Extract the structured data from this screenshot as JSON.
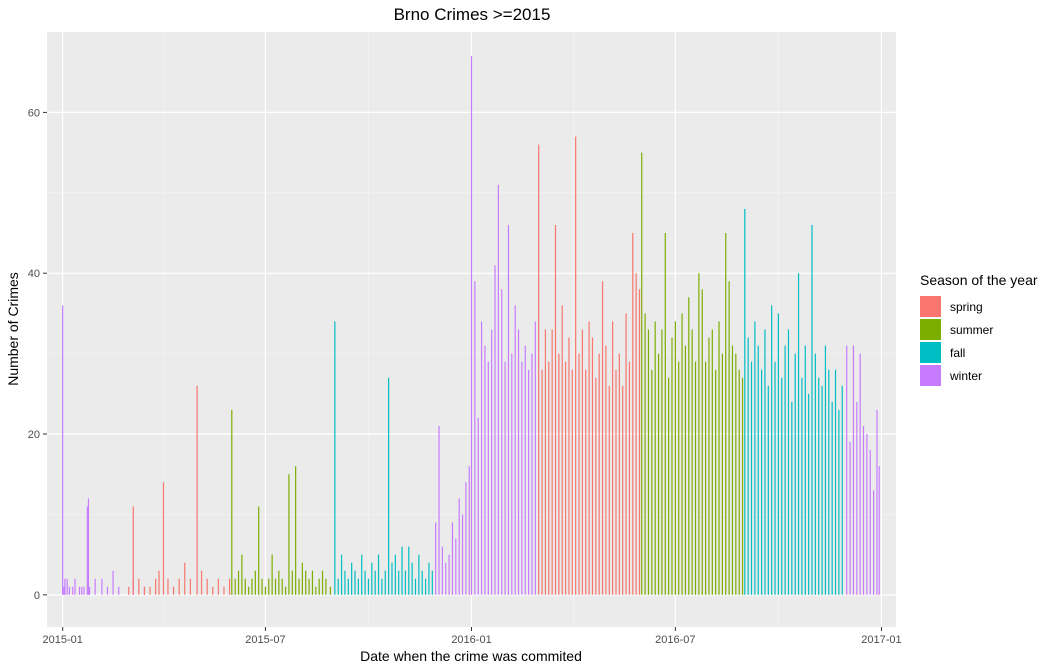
{
  "chart_data": {
    "type": "bar",
    "title": "Brno Crimes >=2015",
    "xlabel": "Date when the crime was commited",
    "ylabel": "Number of Crimes",
    "x_range": [
      "2014-12-18",
      "2017-01-14"
    ],
    "ylim": [
      -4,
      70
    ],
    "y_ticks": [
      0,
      20,
      40,
      60
    ],
    "x_ticks": [
      "2015-01",
      "2015-07",
      "2016-01",
      "2016-07",
      "2017-01"
    ],
    "x_tick_dates": [
      "2015-01-01",
      "2015-07-01",
      "2016-01-01",
      "2016-07-01",
      "2017-01-01"
    ],
    "grid": true,
    "legend": {
      "title": "Season of the year",
      "position": "right",
      "entries": [
        {
          "name": "spring",
          "color": "#F8766D"
        },
        {
          "name": "summer",
          "color": "#7CAE00"
        },
        {
          "name": "fall",
          "color": "#00BFC4"
        },
        {
          "name": "winter",
          "color": "#C77CFF"
        }
      ]
    },
    "series": [
      {
        "name": "winter",
        "color": "#C77CFF",
        "points": [
          [
            "2015-01-01",
            36
          ],
          [
            "2015-01-02",
            1
          ],
          [
            "2015-01-03",
            2
          ],
          [
            "2015-01-05",
            2
          ],
          [
            "2015-01-07",
            1
          ],
          [
            "2015-01-10",
            1
          ],
          [
            "2015-01-12",
            2
          ],
          [
            "2015-01-16",
            1
          ],
          [
            "2015-01-18",
            1
          ],
          [
            "2015-01-20",
            1
          ],
          [
            "2015-01-23",
            11
          ],
          [
            "2015-01-24",
            12
          ],
          [
            "2015-01-25",
            1
          ],
          [
            "2015-01-30",
            2
          ],
          [
            "2015-02-05",
            2
          ],
          [
            "2015-02-10",
            1
          ],
          [
            "2015-02-15",
            3
          ],
          [
            "2015-02-20",
            1
          ],
          [
            "2015-03-05",
            2
          ],
          [
            "2015-03-15",
            1
          ],
          [
            "2015-11-30",
            9
          ],
          [
            "2015-12-03",
            21
          ],
          [
            "2015-12-06",
            6
          ],
          [
            "2015-12-09",
            4
          ],
          [
            "2015-12-12",
            5
          ],
          [
            "2015-12-15",
            9
          ],
          [
            "2015-12-18",
            7
          ],
          [
            "2015-12-21",
            12
          ],
          [
            "2015-12-24",
            10
          ],
          [
            "2015-12-27",
            14
          ],
          [
            "2015-12-30",
            16
          ],
          [
            "2016-01-01",
            67
          ],
          [
            "2016-01-04",
            39
          ],
          [
            "2016-01-07",
            22
          ],
          [
            "2016-01-10",
            34
          ],
          [
            "2016-01-13",
            31
          ],
          [
            "2016-01-16",
            29
          ],
          [
            "2016-01-19",
            33
          ],
          [
            "2016-01-22",
            41
          ],
          [
            "2016-01-25",
            51
          ],
          [
            "2016-01-28",
            38
          ],
          [
            "2016-01-31",
            29
          ],
          [
            "2016-02-03",
            46
          ],
          [
            "2016-02-06",
            30
          ],
          [
            "2016-02-09",
            36
          ],
          [
            "2016-02-12",
            33
          ],
          [
            "2016-02-15",
            29
          ],
          [
            "2016-02-18",
            31
          ],
          [
            "2016-02-21",
            28
          ],
          [
            "2016-02-24",
            30
          ],
          [
            "2016-02-27",
            34
          ],
          [
            "2016-12-01",
            31
          ],
          [
            "2016-12-04",
            19
          ],
          [
            "2016-12-07",
            31
          ],
          [
            "2016-12-10",
            24
          ],
          [
            "2016-12-13",
            30
          ],
          [
            "2016-12-16",
            21
          ],
          [
            "2016-12-19",
            20
          ],
          [
            "2016-12-22",
            18
          ],
          [
            "2016-12-25",
            13
          ],
          [
            "2016-12-28",
            23
          ],
          [
            "2016-12-30",
            16
          ]
        ]
      },
      {
        "name": "spring",
        "color": "#F8766D",
        "points": [
          [
            "2015-03-01",
            1
          ],
          [
            "2015-03-05",
            11
          ],
          [
            "2015-03-10",
            2
          ],
          [
            "2015-03-15",
            1
          ],
          [
            "2015-03-20",
            1
          ],
          [
            "2015-03-25",
            2
          ],
          [
            "2015-03-28",
            3
          ],
          [
            "2015-04-01",
            14
          ],
          [
            "2015-04-05",
            2
          ],
          [
            "2015-04-10",
            1
          ],
          [
            "2015-04-15",
            2
          ],
          [
            "2015-04-20",
            4
          ],
          [
            "2015-04-25",
            2
          ],
          [
            "2015-05-01",
            26
          ],
          [
            "2015-05-05",
            3
          ],
          [
            "2015-05-10",
            2
          ],
          [
            "2015-05-15",
            1
          ],
          [
            "2015-05-20",
            2
          ],
          [
            "2015-05-25",
            1
          ],
          [
            "2015-05-30",
            2
          ],
          [
            "2016-03-01",
            56
          ],
          [
            "2016-03-04",
            28
          ],
          [
            "2016-03-07",
            33
          ],
          [
            "2016-03-10",
            29
          ],
          [
            "2016-03-13",
            33
          ],
          [
            "2016-03-16",
            46
          ],
          [
            "2016-03-19",
            30
          ],
          [
            "2016-03-22",
            36
          ],
          [
            "2016-03-25",
            29
          ],
          [
            "2016-03-28",
            32
          ],
          [
            "2016-03-31",
            28
          ],
          [
            "2016-04-03",
            57
          ],
          [
            "2016-04-06",
            30
          ],
          [
            "2016-04-09",
            33
          ],
          [
            "2016-04-12",
            28
          ],
          [
            "2016-04-15",
            34
          ],
          [
            "2016-04-18",
            32
          ],
          [
            "2016-04-21",
            27
          ],
          [
            "2016-04-24",
            30
          ],
          [
            "2016-04-27",
            39
          ],
          [
            "2016-04-30",
            31
          ],
          [
            "2016-05-03",
            26
          ],
          [
            "2016-05-06",
            34
          ],
          [
            "2016-05-09",
            28
          ],
          [
            "2016-05-12",
            30
          ],
          [
            "2016-05-15",
            26
          ],
          [
            "2016-05-18",
            35
          ],
          [
            "2016-05-21",
            29
          ],
          [
            "2016-05-24",
            45
          ],
          [
            "2016-05-27",
            40
          ],
          [
            "2016-05-30",
            38
          ]
        ]
      },
      {
        "name": "summer",
        "color": "#7CAE00",
        "points": [
          [
            "2015-06-01",
            23
          ],
          [
            "2015-06-04",
            2
          ],
          [
            "2015-06-07",
            3
          ],
          [
            "2015-06-10",
            5
          ],
          [
            "2015-06-13",
            2
          ],
          [
            "2015-06-16",
            1
          ],
          [
            "2015-06-19",
            2
          ],
          [
            "2015-06-22",
            3
          ],
          [
            "2015-06-25",
            11
          ],
          [
            "2015-06-28",
            2
          ],
          [
            "2015-07-01",
            1
          ],
          [
            "2015-07-04",
            2
          ],
          [
            "2015-07-07",
            5
          ],
          [
            "2015-07-10",
            2
          ],
          [
            "2015-07-13",
            3
          ],
          [
            "2015-07-16",
            2
          ],
          [
            "2015-07-19",
            1
          ],
          [
            "2015-07-22",
            15
          ],
          [
            "2015-07-25",
            3
          ],
          [
            "2015-07-28",
            16
          ],
          [
            "2015-07-31",
            2
          ],
          [
            "2015-08-03",
            4
          ],
          [
            "2015-08-06",
            3
          ],
          [
            "2015-08-09",
            2
          ],
          [
            "2015-08-12",
            3
          ],
          [
            "2015-08-15",
            1
          ],
          [
            "2015-08-18",
            2
          ],
          [
            "2015-08-21",
            3
          ],
          [
            "2015-08-24",
            2
          ],
          [
            "2015-08-28",
            1
          ],
          [
            "2016-06-01",
            55
          ],
          [
            "2016-06-04",
            35
          ],
          [
            "2016-06-07",
            33
          ],
          [
            "2016-06-10",
            28
          ],
          [
            "2016-06-13",
            34
          ],
          [
            "2016-06-16",
            30
          ],
          [
            "2016-06-19",
            33
          ],
          [
            "2016-06-22",
            45
          ],
          [
            "2016-06-25",
            27
          ],
          [
            "2016-06-28",
            32
          ],
          [
            "2016-07-01",
            34
          ],
          [
            "2016-07-04",
            29
          ],
          [
            "2016-07-07",
            35
          ],
          [
            "2016-07-10",
            31
          ],
          [
            "2016-07-13",
            37
          ],
          [
            "2016-07-16",
            33
          ],
          [
            "2016-07-19",
            29
          ],
          [
            "2016-07-22",
            40
          ],
          [
            "2016-07-25",
            38
          ],
          [
            "2016-07-28",
            29
          ],
          [
            "2016-07-31",
            32
          ],
          [
            "2016-08-03",
            33
          ],
          [
            "2016-08-06",
            28
          ],
          [
            "2016-08-09",
            34
          ],
          [
            "2016-08-12",
            30
          ],
          [
            "2016-08-15",
            45
          ],
          [
            "2016-08-18",
            39
          ],
          [
            "2016-08-21",
            31
          ],
          [
            "2016-08-24",
            30
          ],
          [
            "2016-08-27",
            28
          ],
          [
            "2016-08-30",
            27
          ]
        ]
      },
      {
        "name": "fall",
        "color": "#00BFC4",
        "points": [
          [
            "2015-09-01",
            34
          ],
          [
            "2015-09-04",
            2
          ],
          [
            "2015-09-07",
            5
          ],
          [
            "2015-09-10",
            3
          ],
          [
            "2015-09-13",
            2
          ],
          [
            "2015-09-16",
            4
          ],
          [
            "2015-09-19",
            3
          ],
          [
            "2015-09-22",
            2
          ],
          [
            "2015-09-25",
            5
          ],
          [
            "2015-09-28",
            3
          ],
          [
            "2015-10-01",
            2
          ],
          [
            "2015-10-04",
            4
          ],
          [
            "2015-10-07",
            3
          ],
          [
            "2015-10-10",
            5
          ],
          [
            "2015-10-13",
            2
          ],
          [
            "2015-10-16",
            3
          ],
          [
            "2015-10-19",
            27
          ],
          [
            "2015-10-22",
            4
          ],
          [
            "2015-10-25",
            5
          ],
          [
            "2015-10-28",
            3
          ],
          [
            "2015-10-31",
            6
          ],
          [
            "2015-11-03",
            3
          ],
          [
            "2015-11-06",
            6
          ],
          [
            "2015-11-09",
            4
          ],
          [
            "2015-11-12",
            2
          ],
          [
            "2015-11-15",
            5
          ],
          [
            "2015-11-18",
            3
          ],
          [
            "2015-11-21",
            2
          ],
          [
            "2015-11-24",
            4
          ],
          [
            "2015-11-27",
            3
          ],
          [
            "2016-09-01",
            48
          ],
          [
            "2016-09-04",
            32
          ],
          [
            "2016-09-07",
            29
          ],
          [
            "2016-09-10",
            34
          ],
          [
            "2016-09-13",
            31
          ],
          [
            "2016-09-16",
            28
          ],
          [
            "2016-09-19",
            33
          ],
          [
            "2016-09-22",
            26
          ],
          [
            "2016-09-25",
            36
          ],
          [
            "2016-09-28",
            29
          ],
          [
            "2016-10-01",
            35
          ],
          [
            "2016-10-04",
            27
          ],
          [
            "2016-10-07",
            31
          ],
          [
            "2016-10-10",
            33
          ],
          [
            "2016-10-13",
            24
          ],
          [
            "2016-10-16",
            30
          ],
          [
            "2016-10-19",
            40
          ],
          [
            "2016-10-22",
            27
          ],
          [
            "2016-10-25",
            31
          ],
          [
            "2016-10-28",
            25
          ],
          [
            "2016-10-31",
            46
          ],
          [
            "2016-11-03",
            30
          ],
          [
            "2016-11-06",
            27
          ],
          [
            "2016-11-09",
            26
          ],
          [
            "2016-11-12",
            31
          ],
          [
            "2016-11-15",
            28
          ],
          [
            "2016-11-18",
            24
          ],
          [
            "2016-11-21",
            28
          ],
          [
            "2016-11-24",
            23
          ],
          [
            "2016-11-27",
            26
          ]
        ]
      }
    ]
  }
}
